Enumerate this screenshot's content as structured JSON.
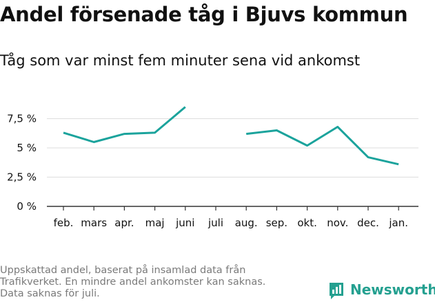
{
  "title": "Andel försenade tåg i Bjuvs kommun",
  "subtitle": "Tåg som var minst fem minuter sena vid ankomst",
  "footnote": [
    "Uppskattad andel, baserat på insamlad data från",
    "Trafikverket. En mindre andel ankomster kan saknas.",
    "Data saknas för juli."
  ],
  "brand": "Newsworthy",
  "colors": {
    "line": "#1ba39c",
    "grid": "#dddddd",
    "axis": "#333333",
    "brand": "#24a090"
  },
  "chart_data": {
    "type": "line",
    "title": "Andel försenade tåg i Bjuvs kommun",
    "subtitle": "Tåg som var minst fem minuter sena vid ankomst",
    "categories": [
      "feb.",
      "mars",
      "apr.",
      "maj",
      "juni",
      "juli",
      "aug.",
      "sep.",
      "okt.",
      "nov.",
      "dec.",
      "jan."
    ],
    "series": [
      {
        "values": [
          6.3,
          5.5,
          6.2,
          6.3,
          8.5,
          null,
          6.2,
          6.5,
          5.2,
          6.8,
          4.2,
          3.6
        ]
      }
    ],
    "ylim": [
      0,
      10
    ],
    "yticks": [
      0,
      2.5,
      5,
      7.5
    ],
    "ytick_labels": [
      "0 %",
      "2,5 %",
      "5 %",
      "7,5 %"
    ],
    "grid": true,
    "legend": "none"
  }
}
